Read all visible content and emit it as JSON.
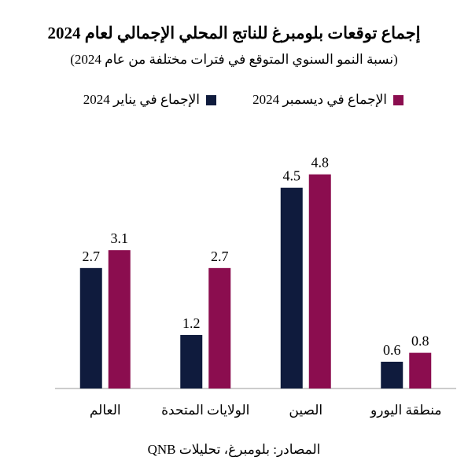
{
  "chart_data": {
    "type": "bar",
    "title": "إجماع توقعات بلومبرغ للناتج المحلي الإجمالي لعام 2024",
    "subtitle": "(نسبة النمو السنوي المتوقع في فترات مختلفة من عام 2024)",
    "categories": [
      "العالم",
      "الولايات المتحدة",
      "الصين",
      "منطقة اليورو"
    ],
    "series": [
      {
        "name": "الإجماع في يناير 2024",
        "values": [
          2.7,
          1.2,
          4.5,
          0.6
        ],
        "color": "#0f1b3d"
      },
      {
        "name": "الإجماع في ديسمبر 2024",
        "values": [
          3.1,
          2.7,
          4.8,
          0.8
        ],
        "color": "#8b0d4f"
      }
    ],
    "ylim": [
      0,
      5.5
    ],
    "grid": false,
    "legend_position": "top"
  },
  "source": "المصادر: بلومبرغ، تحليلات QNB"
}
